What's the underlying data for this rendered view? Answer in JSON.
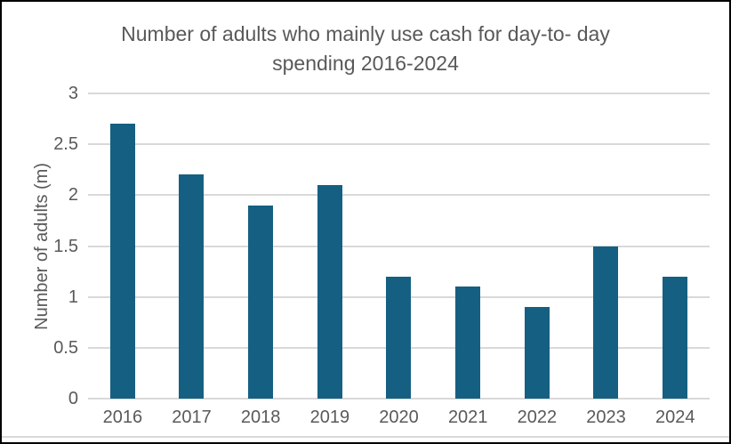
{
  "header": {
    "title_lines": [
      "Number of adults who mainly use cash for day-to- day",
      "spending 2016-2024"
    ]
  },
  "chart_data": {
    "type": "bar",
    "title": "Number of adults who mainly use cash for day-to- day spending 2016-2024",
    "categories": [
      "2016",
      "2017",
      "2018",
      "2019",
      "2020",
      "2021",
      "2022",
      "2023",
      "2024"
    ],
    "values": [
      2.7,
      2.2,
      1.9,
      2.1,
      1.2,
      1.1,
      0.9,
      1.5,
      1.2
    ],
    "xlabel": "",
    "ylabel": "Number of adults (m)",
    "ylim": [
      0,
      3
    ],
    "yticks": [
      0,
      0.5,
      1,
      1.5,
      2,
      2.5,
      3
    ],
    "ytick_labels": [
      "0",
      "0.5",
      "1",
      "1.5",
      "2",
      "2.5",
      "3"
    ],
    "grid": true,
    "legend": false,
    "bar_color": "#156082",
    "gridline_color": "#D9D9D9",
    "text_color": "#595959",
    "background_color": "#FFFFFF",
    "border_color": "#000000"
  }
}
